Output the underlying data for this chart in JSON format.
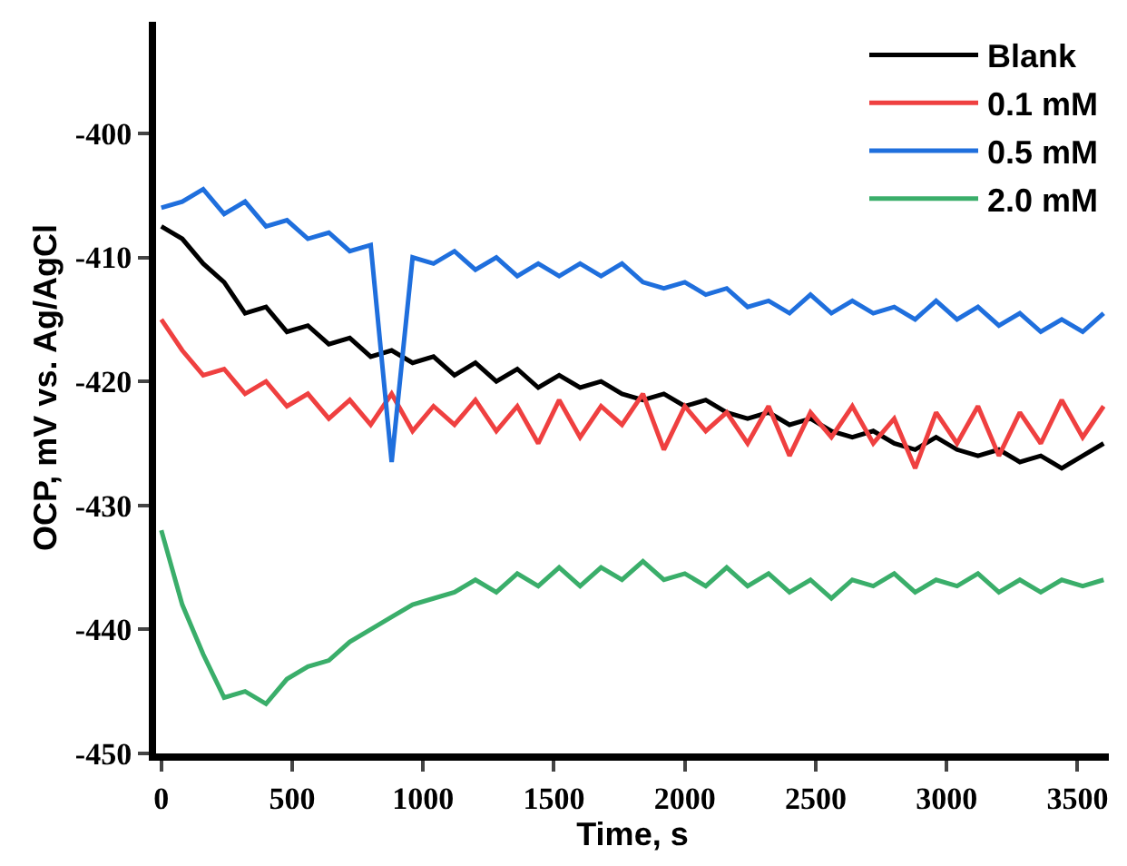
{
  "chart_data": {
    "type": "line",
    "xlabel": "Time, s",
    "ylabel": "OCP, mV vs. Ag/AgCl",
    "x": [
      0,
      80,
      160,
      240,
      320,
      400,
      480,
      560,
      640,
      720,
      800,
      880,
      960,
      1040,
      1120,
      1200,
      1280,
      1360,
      1440,
      1520,
      1600,
      1680,
      1760,
      1840,
      1920,
      2000,
      2080,
      2160,
      2240,
      2320,
      2400,
      2480,
      2560,
      2640,
      2720,
      2800,
      2880,
      2960,
      3040,
      3120,
      3200,
      3280,
      3360,
      3440,
      3520,
      3600
    ],
    "series": [
      {
        "name": "Blank",
        "color": "#000000",
        "values": [
          -407.5,
          -408.5,
          -410.5,
          -412,
          -414.5,
          -414,
          -416,
          -415.5,
          -417,
          -416.5,
          -418,
          -417.5,
          -418.5,
          -418,
          -419.5,
          -418.5,
          -420,
          -419,
          -420.5,
          -419.5,
          -420.5,
          -420,
          -421,
          -421.5,
          -421,
          -422,
          -421.5,
          -422.5,
          -423,
          -422.5,
          -423.5,
          -423,
          -424,
          -424.5,
          -424,
          -425,
          -425.5,
          -424.5,
          -425.5,
          -426,
          -425.5,
          -426.5,
          -426,
          -427,
          -426,
          -425
        ]
      },
      {
        "name": "0.1 mM",
        "color": "#ef4040",
        "values": [
          -415,
          -417.5,
          -419.5,
          -419,
          -421,
          -420,
          -422,
          -421,
          -423,
          -421.5,
          -423.5,
          -421,
          -424,
          -422,
          -423.5,
          -421.5,
          -424,
          -422,
          -425,
          -421.5,
          -424.5,
          -422,
          -423.5,
          -421,
          -425.5,
          -422,
          -424,
          -422.5,
          -425,
          -422,
          -426,
          -422.5,
          -424.5,
          -422,
          -425,
          -423,
          -427,
          -422.5,
          -425,
          -422,
          -426,
          -422.5,
          -425,
          -421.5,
          -424.5,
          -422
        ]
      },
      {
        "name": "0.5 mM",
        "color": "#1f6fdd",
        "values": [
          -406,
          -405.5,
          -404.5,
          -406.5,
          -405.5,
          -407.5,
          -407,
          -408.5,
          -408,
          -409.5,
          -409,
          -426.5,
          -410,
          -410.5,
          -409.5,
          -411,
          -410,
          -411.5,
          -410.5,
          -411.5,
          -410.5,
          -411.5,
          -410.5,
          -412,
          -412.5,
          -412,
          -413,
          -412.5,
          -414,
          -413.5,
          -414.5,
          -413,
          -414.5,
          -413.5,
          -414.5,
          -414,
          -415,
          -413.5,
          -415,
          -414,
          -415.5,
          -414.5,
          -416,
          -415,
          -416,
          -414.5
        ]
      },
      {
        "name": "2.0 mM",
        "color": "#3aae6a",
        "values": [
          -432,
          -438,
          -442,
          -445.5,
          -445,
          -446,
          -444,
          -443,
          -442.5,
          -441,
          -440,
          -439,
          -438,
          -437.5,
          -437,
          -436,
          -437,
          -435.5,
          -436.5,
          -435,
          -436.5,
          -435,
          -436,
          -434.5,
          -436,
          -435.5,
          -436.5,
          -435,
          -436.5,
          -435.5,
          -437,
          -436,
          -437.5,
          -436,
          -436.5,
          -435.5,
          -437,
          -436,
          -436.5,
          -435.5,
          -437,
          -436,
          -437,
          -436,
          -436.5,
          -436
        ]
      }
    ],
    "xlim": [
      -20,
      3620
    ],
    "xticks": [
      0,
      500,
      1000,
      1500,
      2000,
      2500,
      3000,
      3500
    ],
    "ylim": [
      -450,
      -391
    ],
    "yticks": [
      -450,
      -440,
      -430,
      -420,
      -410,
      -400
    ],
    "grid": false,
    "legend": "top right",
    "line_style": "solid",
    "marker": "none"
  }
}
